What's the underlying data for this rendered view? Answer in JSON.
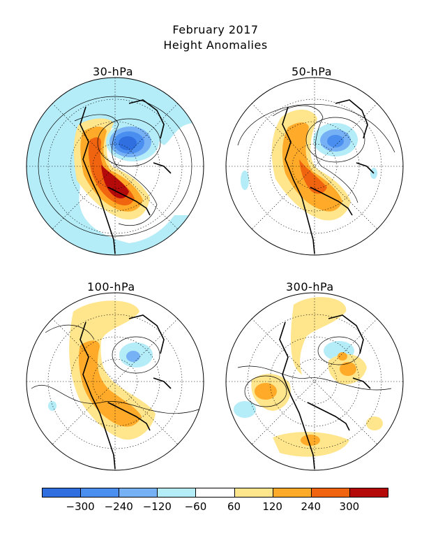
{
  "title": {
    "line1": "February 2017",
    "line2": "Height Anomalies"
  },
  "panels": [
    {
      "label": "30-hPa"
    },
    {
      "label": "50-hPa"
    },
    {
      "label": "100-hPa"
    },
    {
      "label": "300-hPa"
    }
  ],
  "colorbar": {
    "colors": [
      "#2f6fe0",
      "#4a8ef0",
      "#77b1f5",
      "#b4ecf8",
      "#ffffff",
      "#ffe58c",
      "#ffaa28",
      "#f0640f",
      "#b40a0a"
    ],
    "labels": [
      "-300",
      "-240",
      "-120",
      "-60",
      "60",
      "120",
      "240",
      "300"
    ]
  }
}
